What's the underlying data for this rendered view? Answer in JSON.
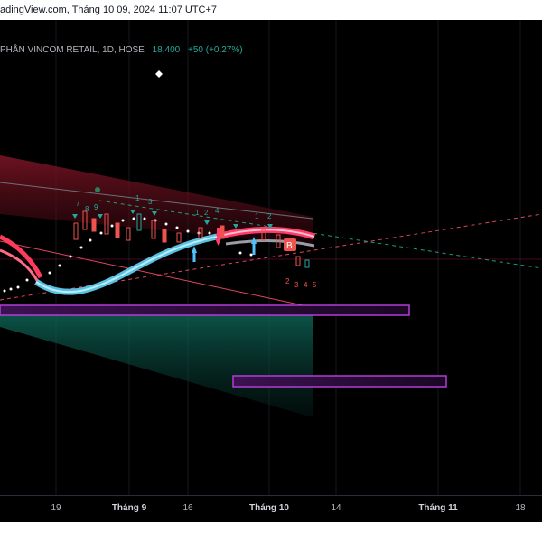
{
  "header": {
    "source_text": "adingView.com, Tháng 10 09, 2024 11:07 UTC+7"
  },
  "symbol": {
    "name": "PHẦN VINCOM RETAIL, 1D, HOSE",
    "price": "18,400",
    "change": "+50 (+0.27%)"
  },
  "xaxis": {
    "labels": [
      "19",
      "Tháng 9",
      "16",
      "Tháng 10",
      "14",
      "Tháng 11",
      "18"
    ],
    "bold": [
      false,
      true,
      false,
      true,
      false,
      true,
      false
    ]
  },
  "colors": {
    "background": "#000000",
    "ribbon_main": "#5bc0de",
    "ribbon_up": "#ff4d6d",
    "box": "#b23cd6",
    "channel_top": "#8b1a2b",
    "channel_bottom": "#0f7a6a"
  },
  "markers": {
    "diamond": "white-diamond-icon",
    "arrow_up": "cyan-up-arrow-icon",
    "arrow_down": "red-down-arrow-icon",
    "sell_label": "B"
  }
}
